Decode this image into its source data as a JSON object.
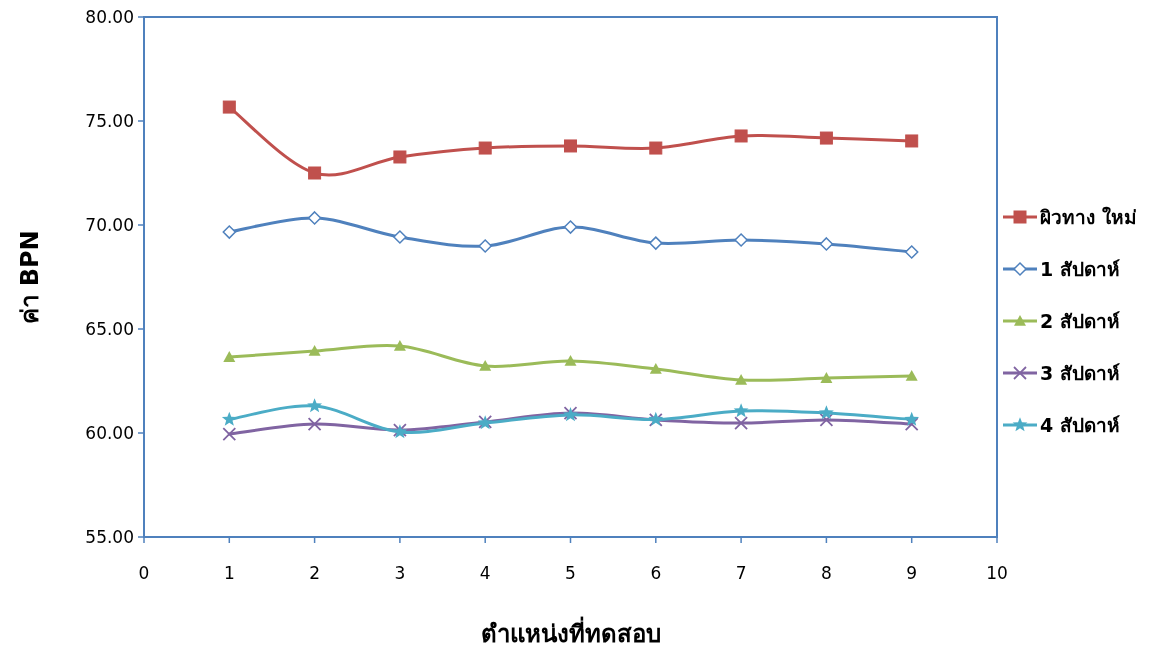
{
  "chart_data": {
    "type": "line",
    "xlabel": "ตำแหน่งที่ทดสอบ",
    "ylabel": "ค่า BPN",
    "x": [
      1,
      2,
      3,
      4,
      5,
      6,
      7,
      8,
      9
    ],
    "xlim": [
      0,
      10
    ],
    "xticks": [
      0,
      1,
      2,
      3,
      4,
      5,
      6,
      7,
      8,
      9,
      10
    ],
    "ylim": [
      55,
      80
    ],
    "yticks": [
      {
        "value": 55,
        "label": "55.00"
      },
      {
        "value": 60,
        "label": "60.00"
      },
      {
        "value": 65,
        "label": "65.00"
      },
      {
        "value": 70,
        "label": "70.00"
      },
      {
        "value": 75,
        "label": "75.00"
      },
      {
        "value": 80,
        "label": "80.00"
      }
    ],
    "grid": false,
    "legend": "right",
    "series": [
      {
        "name": "ผิวทาง ใหม่",
        "color": "#c0504d",
        "marker": "square",
        "values": [
          75.67,
          72.5,
          73.27,
          73.7,
          73.8,
          73.7,
          74.28,
          74.18,
          74.04
        ]
      },
      {
        "name": "1 สัปดาห์",
        "color": "#4f81bd",
        "marker": "diamond",
        "values": [
          69.66,
          70.34,
          69.42,
          68.99,
          69.9,
          69.13,
          69.28,
          69.09,
          68.7
        ]
      },
      {
        "name": "2 สัปดาห์",
        "color": "#9bbb59",
        "marker": "triangle",
        "values": [
          63.65,
          63.94,
          64.18,
          63.22,
          63.46,
          63.08,
          62.55,
          62.64,
          62.74
        ]
      },
      {
        "name": "3 สัปดาห์",
        "color": "#8064a2",
        "marker": "cross",
        "values": [
          59.95,
          60.43,
          60.14,
          60.53,
          60.96,
          60.63,
          60.48,
          60.63,
          60.43
        ]
      },
      {
        "name": "4 สัปดาห์",
        "color": "#4bacc6",
        "marker": "star",
        "values": [
          60.65,
          61.3,
          60.05,
          60.48,
          60.87,
          60.65,
          61.06,
          60.96,
          60.65
        ]
      }
    ]
  }
}
